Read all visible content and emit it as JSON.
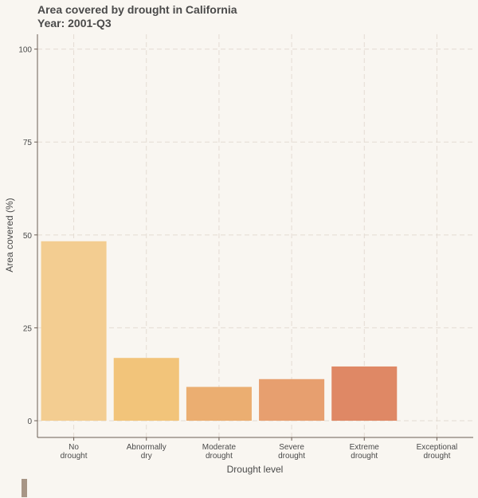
{
  "title": {
    "line1": "Area covered by drought in California",
    "line2": "Year: 2001-Q3"
  },
  "chart_data": {
    "type": "bar",
    "categories": [
      [
        "No",
        "drought"
      ],
      [
        "Abnormally",
        "dry"
      ],
      [
        "Moderate",
        "drought"
      ],
      [
        "Severe",
        "drought"
      ],
      [
        "Extreme",
        "drought"
      ],
      [
        "Exceptional",
        "drought"
      ]
    ],
    "values": [
      48.3,
      16.9,
      9.1,
      11.2,
      14.6,
      0
    ],
    "colors": [
      "#f3cd91",
      "#f2c47a",
      "#ebae71",
      "#e79f6f",
      "#df8865",
      "#d2715e"
    ],
    "xlabel": "Drought level",
    "ylabel": "Area covered (%)",
    "ylim": [
      -4.5,
      104
    ],
    "yticks": [
      0,
      25,
      50,
      75,
      100
    ],
    "grid": true
  }
}
